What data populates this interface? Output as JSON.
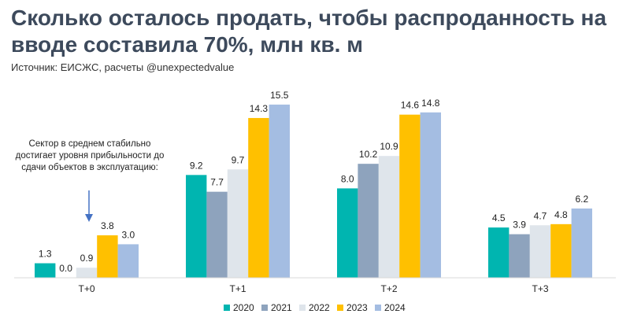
{
  "title": "Сколько осталось продать, чтобы распроданность на вводе составила 70%, млн кв. м",
  "subtitle": "Источник: ЕИСЖС, расчеты @unexpectedvalue",
  "annotation": "Сектор в среднем стабильно достигает уровня прибыльности до сдачи объектов в эксплуатацию:",
  "chart_data": {
    "type": "bar",
    "categories": [
      "Т+0",
      "Т+1",
      "Т+2",
      "Т+3"
    ],
    "series": [
      {
        "name": "2020",
        "color": "#00b5b0",
        "values": [
          1.3,
          9.2,
          8.0,
          4.5
        ]
      },
      {
        "name": "2021",
        "color": "#8ea3bd",
        "values": [
          0.0,
          7.7,
          10.2,
          3.9
        ]
      },
      {
        "name": "2022",
        "color": "#dfe5eb",
        "values": [
          0.9,
          9.7,
          10.9,
          4.7
        ]
      },
      {
        "name": "2023",
        "color": "#ffc000",
        "values": [
          3.8,
          14.3,
          14.6,
          4.8
        ]
      },
      {
        "name": "2024",
        "color": "#a4bde2",
        "values": [
          3.0,
          15.5,
          14.8,
          6.2
        ]
      }
    ],
    "ylim": [
      0,
      15.5
    ],
    "legend": "bottom",
    "grid": false
  }
}
